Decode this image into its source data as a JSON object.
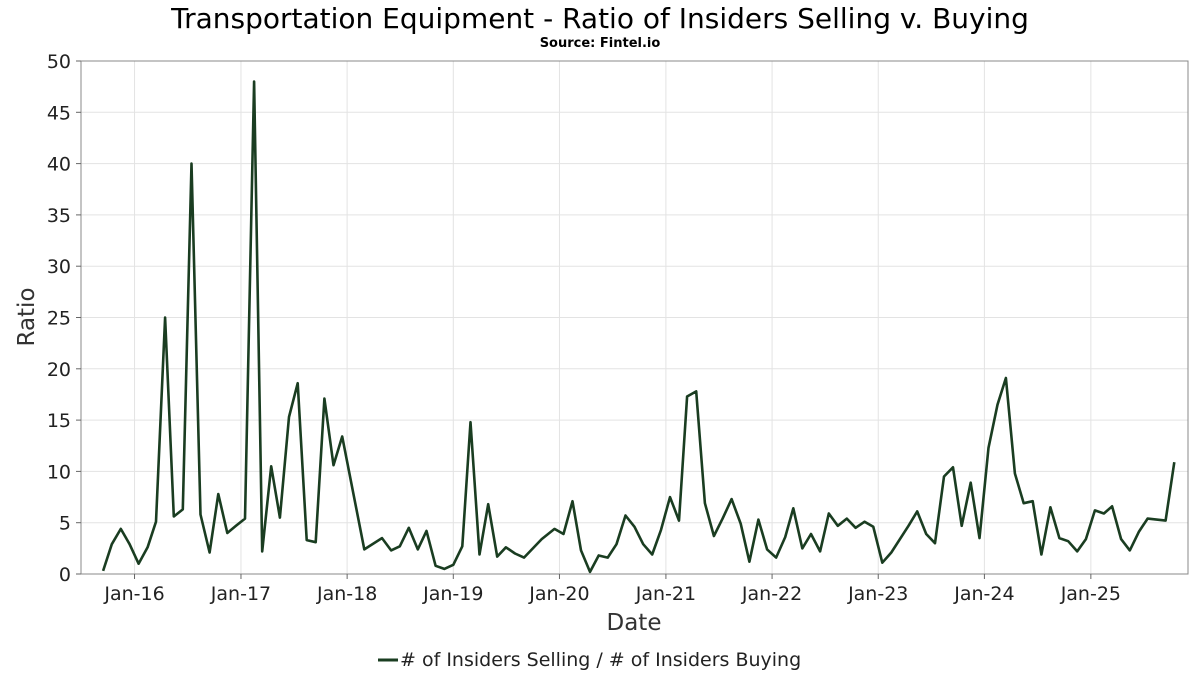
{
  "chart_data": {
    "type": "line",
    "title": "Transportation Equipment - Ratio of Insiders Selling v. Buying",
    "subtitle": "Source: Fintel.io",
    "xlabel": "Date",
    "ylabel": "Ratio",
    "ylim": [
      0,
      50
    ],
    "y_ticks": [
      0,
      5,
      10,
      15,
      20,
      25,
      30,
      35,
      40,
      45,
      50
    ],
    "x_ticks": [
      "Jan-16",
      "Jan-17",
      "Jan-18",
      "Jan-19",
      "Jan-20",
      "Jan-21",
      "Jan-22",
      "Jan-23",
      "Jan-24",
      "Jan-25"
    ],
    "xlim": [
      "2015-07-01",
      "2025-12-01"
    ],
    "grid": true,
    "legend_position": "bottom",
    "line_color": "#1a3d21",
    "series": [
      {
        "name": "# of Insiders Selling / # of Insiders Buying",
        "points": [
          [
            "2015-09-15",
            0.3
          ],
          [
            "2015-10-15",
            2.9
          ],
          [
            "2015-11-15",
            4.4
          ],
          [
            "2015-12-15",
            2.9
          ],
          [
            "2016-01-15",
            1.0
          ],
          [
            "2016-02-15",
            2.6
          ],
          [
            "2016-03-15",
            5.1
          ],
          [
            "2016-04-15",
            25.0
          ],
          [
            "2016-05-15",
            5.6
          ],
          [
            "2016-06-15",
            6.3
          ],
          [
            "2016-07-15",
            40.0
          ],
          [
            "2016-08-15",
            5.8
          ],
          [
            "2016-09-15",
            2.1
          ],
          [
            "2016-10-15",
            7.8
          ],
          [
            "2016-11-15",
            4.0
          ],
          [
            "2016-12-15",
            4.7
          ],
          [
            "2017-01-15",
            5.4
          ],
          [
            "2017-02-15",
            48.0
          ],
          [
            "2017-03-15",
            2.2
          ],
          [
            "2017-04-15",
            10.5
          ],
          [
            "2017-05-15",
            5.5
          ],
          [
            "2017-06-15",
            15.3
          ],
          [
            "2017-07-15",
            18.6
          ],
          [
            "2017-08-15",
            3.3
          ],
          [
            "2017-09-15",
            3.1
          ],
          [
            "2017-10-15",
            17.1
          ],
          [
            "2017-11-15",
            10.6
          ],
          [
            "2017-12-15",
            13.4
          ],
          [
            "2018-03-01",
            2.4
          ],
          [
            "2018-05-01",
            3.5
          ],
          [
            "2018-06-01",
            2.3
          ],
          [
            "2018-07-01",
            2.7
          ],
          [
            "2018-08-01",
            4.5
          ],
          [
            "2018-09-01",
            2.4
          ],
          [
            "2018-10-01",
            4.2
          ],
          [
            "2018-11-01",
            0.8
          ],
          [
            "2018-12-01",
            0.5
          ],
          [
            "2019-01-01",
            0.9
          ],
          [
            "2019-02-01",
            2.7
          ],
          [
            "2019-03-01",
            14.8
          ],
          [
            "2019-04-01",
            1.9
          ],
          [
            "2019-05-01",
            6.8
          ],
          [
            "2019-06-01",
            1.7
          ],
          [
            "2019-07-01",
            2.6
          ],
          [
            "2019-08-01",
            2.0
          ],
          [
            "2019-09-01",
            1.6
          ],
          [
            "2019-11-01",
            3.4
          ],
          [
            "2019-12-15",
            4.4
          ],
          [
            "2020-01-15",
            3.9
          ],
          [
            "2020-02-15",
            7.1
          ],
          [
            "2020-03-15",
            2.3
          ],
          [
            "2020-04-15",
            0.2
          ],
          [
            "2020-05-15",
            1.8
          ],
          [
            "2020-06-15",
            1.6
          ],
          [
            "2020-07-15",
            2.9
          ],
          [
            "2020-08-15",
            5.7
          ],
          [
            "2020-09-15",
            4.6
          ],
          [
            "2020-10-15",
            2.9
          ],
          [
            "2020-11-15",
            1.9
          ],
          [
            "2020-12-15",
            4.3
          ],
          [
            "2021-01-15",
            7.5
          ],
          [
            "2021-02-15",
            5.2
          ],
          [
            "2021-03-15",
            17.3
          ],
          [
            "2021-04-15",
            17.8
          ],
          [
            "2021-05-15",
            6.9
          ],
          [
            "2021-06-15",
            3.7
          ],
          [
            "2021-07-15",
            5.4
          ],
          [
            "2021-08-15",
            7.3
          ],
          [
            "2021-09-15",
            4.9
          ],
          [
            "2021-10-15",
            1.2
          ],
          [
            "2021-11-15",
            5.3
          ],
          [
            "2021-12-15",
            2.4
          ],
          [
            "2022-01-15",
            1.6
          ],
          [
            "2022-02-15",
            3.6
          ],
          [
            "2022-03-15",
            6.4
          ],
          [
            "2022-04-15",
            2.5
          ],
          [
            "2022-05-15",
            3.9
          ],
          [
            "2022-06-15",
            2.2
          ],
          [
            "2022-07-15",
            5.9
          ],
          [
            "2022-08-15",
            4.7
          ],
          [
            "2022-09-15",
            5.4
          ],
          [
            "2022-10-15",
            4.5
          ],
          [
            "2022-11-15",
            5.1
          ],
          [
            "2022-12-15",
            4.6
          ],
          [
            "2023-01-15",
            1.1
          ],
          [
            "2023-02-15",
            2.1
          ],
          [
            "2023-04-15",
            4.7
          ],
          [
            "2023-05-15",
            6.1
          ],
          [
            "2023-06-15",
            3.9
          ],
          [
            "2023-07-15",
            3.0
          ],
          [
            "2023-08-15",
            9.5
          ],
          [
            "2023-09-15",
            10.4
          ],
          [
            "2023-10-15",
            4.7
          ],
          [
            "2023-11-15",
            8.9
          ],
          [
            "2023-12-15",
            3.5
          ],
          [
            "2024-01-15",
            12.3
          ],
          [
            "2024-02-15",
            16.5
          ],
          [
            "2024-03-15",
            19.1
          ],
          [
            "2024-04-15",
            9.8
          ],
          [
            "2024-05-15",
            6.9
          ],
          [
            "2024-06-15",
            7.1
          ],
          [
            "2024-07-15",
            1.9
          ],
          [
            "2024-08-15",
            6.5
          ],
          [
            "2024-09-15",
            3.5
          ],
          [
            "2024-10-15",
            3.2
          ],
          [
            "2024-11-15",
            2.2
          ],
          [
            "2024-12-15",
            3.4
          ],
          [
            "2025-01-15",
            6.2
          ],
          [
            "2025-02-15",
            5.9
          ],
          [
            "2025-03-15",
            6.6
          ],
          [
            "2025-04-15",
            3.4
          ],
          [
            "2025-05-15",
            2.3
          ],
          [
            "2025-06-15",
            4.1
          ],
          [
            "2025-07-15",
            5.4
          ],
          [
            "2025-09-15",
            5.2
          ],
          [
            "2025-10-15",
            10.9
          ]
        ]
      }
    ]
  }
}
